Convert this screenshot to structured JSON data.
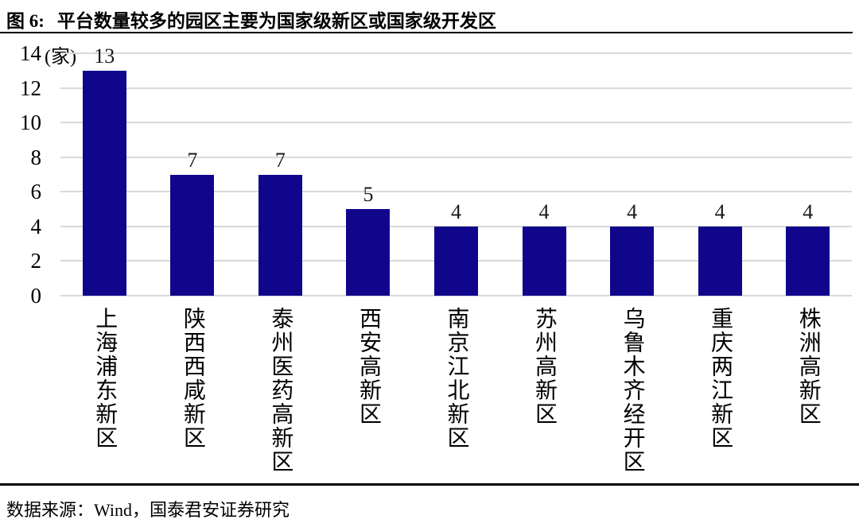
{
  "header": {
    "figure_label": "图 6:",
    "title": "平台数量较多的园区主要为国家级新区或国家级开发区"
  },
  "chart_data": {
    "type": "bar",
    "title": "图 6: 平台数量较多的园区主要为国家级新区或国家级开发区",
    "unit_label": "(家)",
    "categories": [
      "上海浦东新区",
      "陕西西咸新区",
      "泰州医药高新区",
      "西安高新区",
      "南京江北新区",
      "苏州高新区",
      "乌鲁木齐经开区",
      "重庆两江新区",
      "株洲高新区"
    ],
    "values": [
      13,
      7,
      7,
      5,
      4,
      4,
      4,
      4,
      4
    ],
    "ylim": [
      0,
      14
    ],
    "yticks": [
      0,
      2,
      4,
      6,
      8,
      10,
      12,
      14
    ],
    "data_labels": true,
    "legend_position": "none",
    "grid": "horizontal",
    "bar_color": "#10068C",
    "grid_color": "#D9D9D9",
    "xlabel": "",
    "ylabel": ""
  },
  "footer": {
    "source": "数据来源：Wind，国泰君安证券研究"
  }
}
